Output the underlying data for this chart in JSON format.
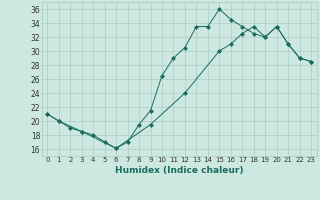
{
  "title": "",
  "xlabel": "Humidex (Indice chaleur)",
  "xlim": [
    -0.5,
    23.5
  ],
  "ylim": [
    15,
    37
  ],
  "yticks": [
    16,
    18,
    20,
    22,
    24,
    26,
    28,
    30,
    32,
    34,
    36
  ],
  "xticks": [
    0,
    1,
    2,
    3,
    4,
    5,
    6,
    7,
    8,
    9,
    10,
    11,
    12,
    13,
    14,
    15,
    16,
    17,
    18,
    19,
    20,
    21,
    22,
    23
  ],
  "background_color": "#cce8e0",
  "grid_color": "#aaccc4",
  "line_color": "#1a6b60",
  "line1_x": [
    0,
    1,
    2,
    3,
    4,
    5,
    6,
    7,
    8,
    9,
    10,
    11,
    12,
    13,
    14,
    15,
    16,
    17,
    18,
    19,
    20,
    21,
    22,
    23
  ],
  "line1_y": [
    21,
    20,
    19,
    18.5,
    18,
    17,
    16.1,
    17,
    19.5,
    21.5,
    26.5,
    29,
    30.5,
    33.5,
    33.5,
    36,
    34.5,
    33.5,
    32.5,
    32,
    33.5,
    31,
    29,
    28.5
  ],
  "line2_x": [
    0,
    1,
    3,
    6,
    9,
    12,
    15,
    16,
    17,
    18,
    19,
    20,
    21,
    22,
    23
  ],
  "line2_y": [
    21,
    20,
    18.5,
    16.1,
    19.5,
    24,
    30,
    31,
    32.5,
    33.5,
    32,
    33.5,
    31,
    29,
    28.5
  ]
}
